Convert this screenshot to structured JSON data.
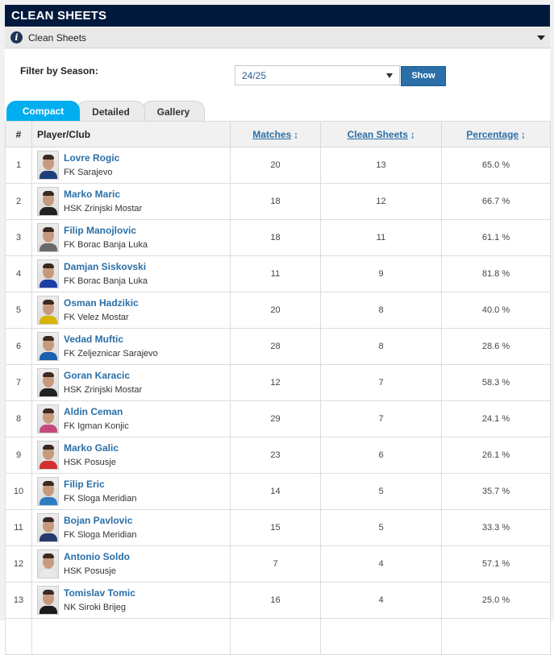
{
  "title": "CLEAN SHEETS",
  "section": {
    "label": "Clean Sheets",
    "icon": "info-icon"
  },
  "filter": {
    "label": "Filter by Season:",
    "season": "24/25",
    "button": "Show"
  },
  "tabs": [
    "Compact",
    "Detailed",
    "Gallery"
  ],
  "columns": {
    "num": "#",
    "player": "Player/Club",
    "matches": "Matches",
    "clean_sheets": "Clean Sheets",
    "percentage": "Percentage",
    "sort_icon": "↨"
  },
  "colors": {
    "header": "#001a3d",
    "accent": "#00aeef",
    "link": "#2a6fa8"
  },
  "rows": [
    {
      "rank": "1",
      "name": "Lovre Rogic",
      "club": "FK Sarajevo",
      "matches": "20",
      "clean_sheets": "13",
      "percentage": "65.0 %",
      "shirt": "#1d3f7a"
    },
    {
      "rank": "2",
      "name": "Marko Maric",
      "club": "HSK Zrinjski Mostar",
      "matches": "18",
      "clean_sheets": "12",
      "percentage": "66.7 %",
      "shirt": "#222222"
    },
    {
      "rank": "3",
      "name": "Filip Manojlovic",
      "club": "FK Borac Banja Luka",
      "matches": "18",
      "clean_sheets": "11",
      "percentage": "61.1 %",
      "shirt": "#6a6a6a"
    },
    {
      "rank": "4",
      "name": "Damjan Siskovski",
      "club": "FK Borac Banja Luka",
      "matches": "11",
      "clean_sheets": "9",
      "percentage": "81.8 %",
      "shirt": "#1f3fa8"
    },
    {
      "rank": "5",
      "name": "Osman Hadzikic",
      "club": "FK Velez Mostar",
      "matches": "20",
      "clean_sheets": "8",
      "percentage": "40.0 %",
      "shirt": "#d6b400"
    },
    {
      "rank": "6",
      "name": "Vedad Muftic",
      "club": "FK Zeljeznicar Sarajevo",
      "matches": "28",
      "clean_sheets": "8",
      "percentage": "28.6 %",
      "shirt": "#1b5fb0"
    },
    {
      "rank": "7",
      "name": "Goran Karacic",
      "club": "HSK Zrinjski Mostar",
      "matches": "12",
      "clean_sheets": "7",
      "percentage": "58.3 %",
      "shirt": "#222222"
    },
    {
      "rank": "8",
      "name": "Aldin Ceman",
      "club": "FK Igman Konjic",
      "matches": "29",
      "clean_sheets": "7",
      "percentage": "24.1 %",
      "shirt": "#c44a7d"
    },
    {
      "rank": "9",
      "name": "Marko Galic",
      "club": "HSK Posusje",
      "matches": "23",
      "clean_sheets": "6",
      "percentage": "26.1 %",
      "shirt": "#d22f2f"
    },
    {
      "rank": "10",
      "name": "Filip Eric",
      "club": "FK Sloga Meridian",
      "matches": "14",
      "clean_sheets": "5",
      "percentage": "35.7 %",
      "shirt": "#2e7bc4"
    },
    {
      "rank": "11",
      "name": "Bojan Pavlovic",
      "club": "FK Sloga Meridian",
      "matches": "15",
      "clean_sheets": "5",
      "percentage": "33.3 %",
      "shirt": "#233a6b"
    },
    {
      "rank": "12",
      "name": "Antonio Soldo",
      "club": "HSK Posusje",
      "matches": "7",
      "clean_sheets": "4",
      "percentage": "57.1 %",
      "shirt": "#e9e9e9"
    },
    {
      "rank": "13",
      "name": "Tomislav Tomic",
      "club": "NK Siroki Brijeg",
      "matches": "16",
      "clean_sheets": "4",
      "percentage": "25.0 %",
      "shirt": "#1a1a1a"
    },
    {
      "rank": "",
      "name": "",
      "club": "",
      "matches": "",
      "clean_sheets": "",
      "percentage": "",
      "shirt": "#dddddd"
    }
  ]
}
